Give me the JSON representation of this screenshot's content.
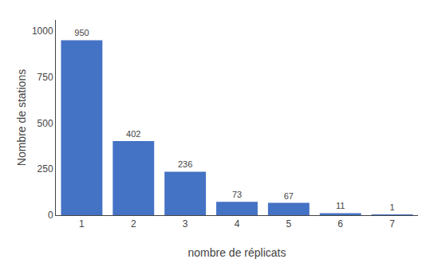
{
  "chart_data": {
    "type": "bar",
    "categories": [
      1,
      2,
      3,
      4,
      5,
      6,
      7
    ],
    "values": [
      950,
      402,
      236,
      73,
      67,
      11,
      1
    ],
    "color": "#4472C4",
    "xlabel": "nombre de réplicats",
    "ylabel": "Nombre de stations",
    "ylim": [
      0,
      1060
    ],
    "yticks": [
      0,
      250,
      500,
      750,
      1000
    ],
    "grid": false,
    "data_labels": true
  }
}
